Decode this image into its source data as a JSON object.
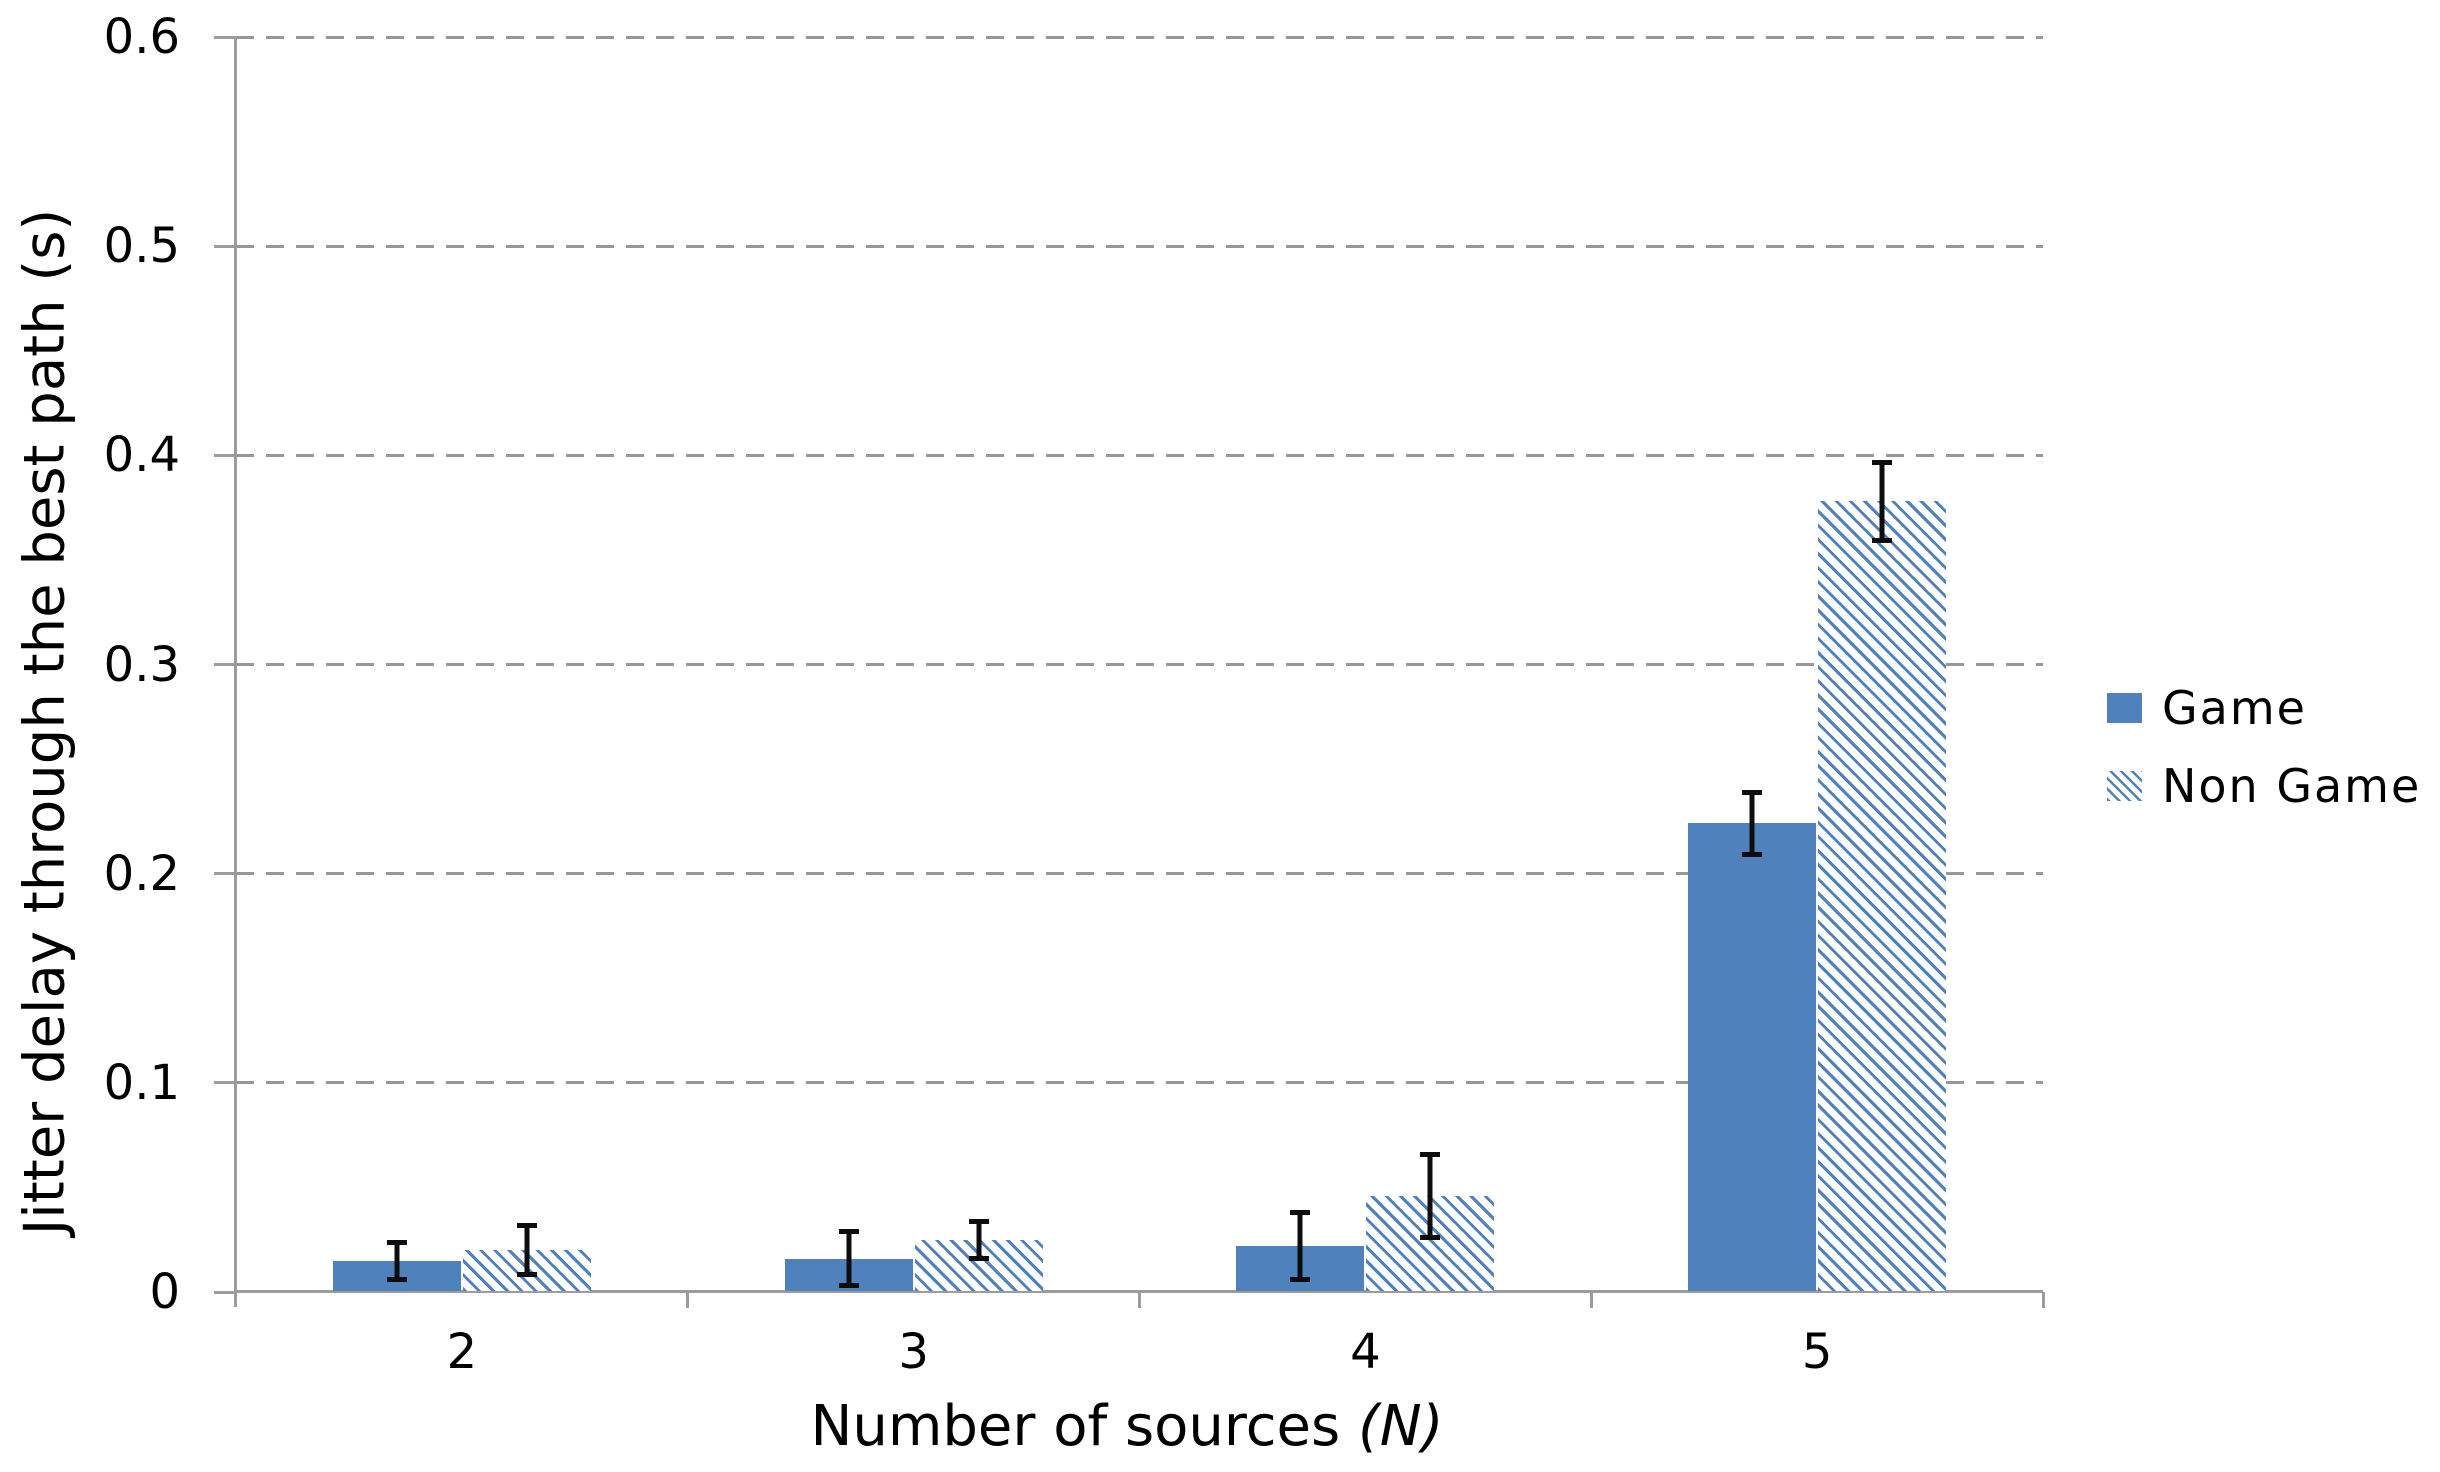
{
  "colors": {
    "bar_blue": "#4f81bd",
    "axis_gray": "#9c9c9c",
    "grid_gray": "#979797",
    "error_bar_black": "#0d0d0d",
    "text_black": "#000000"
  },
  "chart_data": {
    "type": "bar",
    "title": "",
    "categories": [
      "2",
      "3",
      "4",
      "5"
    ],
    "series": [
      {
        "name": "Game",
        "fill": "solid",
        "color": "#4f81bd",
        "values": [
          0.015,
          0.016,
          0.022,
          0.224
        ],
        "errors": [
          0.01,
          0.014,
          0.017,
          0.016
        ]
      },
      {
        "name": "Non Game",
        "fill": "hatched",
        "color": "#4f81bd",
        "values": [
          0.02,
          0.025,
          0.046,
          0.378
        ],
        "errors": [
          0.013,
          0.01,
          0.021,
          0.02
        ]
      }
    ],
    "xlabel": "Number of sources (N)",
    "xlabel_parts": {
      "prefix": "Number of sources ",
      "italic_var": "(N)"
    },
    "ylabel": "Jitter delay through the best path (s)",
    "ylim": [
      0,
      0.6
    ],
    "yticks": [
      0,
      0.1,
      0.2,
      0.3,
      0.4,
      0.5,
      0.6
    ],
    "ytick_labels": [
      "0",
      "0.1",
      "0.2",
      "0.3",
      "0.4",
      "0.5",
      "0.6"
    ],
    "grid": {
      "horizontal": true,
      "style": "dashed"
    },
    "error_bars": true,
    "legend": {
      "position": "right",
      "entries": [
        "Game",
        "Non Game"
      ]
    }
  }
}
